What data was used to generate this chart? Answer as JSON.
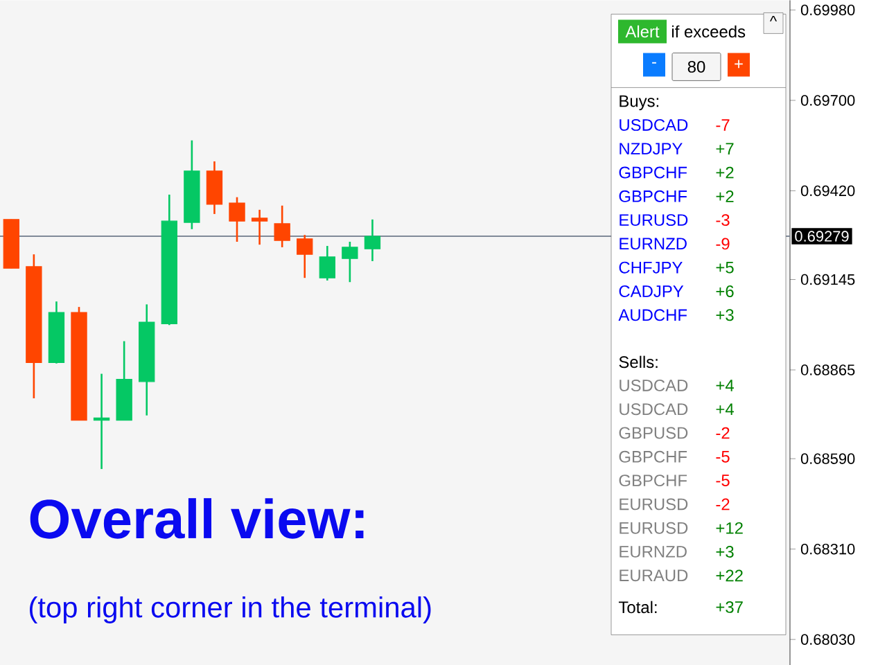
{
  "chart_data": {
    "type": "candlestick",
    "categories": [
      null,
      null,
      null,
      null,
      null,
      null,
      null,
      null,
      null,
      null,
      null,
      null,
      null,
      null,
      null,
      null,
      null,
      null,
      null,
      null,
      null,
      null,
      null,
      null,
      null,
      null,
      null,
      null,
      null,
      null,
      null,
      null,
      null,
      null,
      null
    ],
    "ohlc": [
      [
        0.69331,
        0.69331,
        0.6918,
        0.6918
      ],
      [
        0.69185,
        0.69223,
        0.68777,
        0.68888
      ],
      [
        0.68888,
        0.69077,
        0.68885,
        0.69043
      ],
      [
        0.69043,
        0.6906,
        0.68709,
        0.68709
      ],
      [
        0.68709,
        0.68853,
        0.68558,
        0.68716
      ],
      [
        0.68709,
        0.68954,
        0.68709,
        0.68836
      ],
      [
        0.68829,
        0.69068,
        0.68724,
        0.69013
      ],
      [
        0.69008,
        0.69408,
        0.69004,
        0.69326
      ],
      [
        0.69322,
        0.69576,
        0.69301,
        0.69481
      ],
      [
        0.69481,
        0.69511,
        0.69348,
        0.69378
      ],
      [
        0.69382,
        0.694,
        0.69262,
        0.69326
      ],
      [
        0.69335,
        0.69361,
        0.69253,
        0.69326
      ],
      [
        0.69318,
        0.69374,
        0.69245,
        0.69266
      ],
      [
        0.69271,
        0.69283,
        0.6915,
        0.69223
      ],
      [
        0.6915,
        0.69249,
        0.69142,
        0.69215
      ],
      [
        0.6921,
        0.69262,
        0.69137,
        0.69245
      ],
      [
        0.6924,
        0.69331,
        0.69202,
        0.69279
      ],
      null,
      null,
      null,
      null,
      null,
      null,
      null,
      null,
      null,
      null,
      null,
      null,
      null,
      null,
      null,
      null,
      null,
      null
    ],
    "colors": [
      "#ff4500",
      "#ff4500",
      "#05c864",
      "#ff4500",
      "#05c864",
      "#05c864",
      "#05c864",
      "#05c864",
      "#05c864",
      "#ff4500",
      "#ff4500",
      "#ff4500",
      "#ff4500",
      "#ff4500",
      "#05c864",
      "#05c864",
      "#05c864",
      null,
      null,
      null,
      null,
      null,
      null,
      null,
      null,
      null,
      null,
      null,
      null,
      null,
      null,
      null,
      null,
      null,
      null
    ],
    "ylim": [
      0.6795,
      0.7001
    ],
    "yticks": [
      {
        "value": 0.6998,
        "label": "0.69980"
      },
      {
        "value": 0.697,
        "label": "0.69700"
      },
      {
        "value": 0.6942,
        "label": "0.69420"
      },
      {
        "value": 0.69145,
        "label": "0.69145"
      },
      {
        "value": 0.68865,
        "label": "0.68865"
      },
      {
        "value": 0.6859,
        "label": "0.68590"
      },
      {
        "value": 0.6831,
        "label": "0.68310"
      },
      {
        "value": 0.6803,
        "label": "0.68030"
      }
    ],
    "tick_labels": "y",
    "ref_lines": [
      {
        "axis": "y",
        "value": 0.69279,
        "label": "0.69279",
        "color": "#7f8998"
      }
    ],
    "annotations": [
      "Overall view:",
      "(top right corner in the terminal)",
      "Alert",
      "if exceeds",
      "-",
      "80",
      "+",
      "^",
      "Buys:",
      "USDCAD",
      "-7",
      "NZDJPY",
      "+7",
      "GBPCHF",
      "+2",
      "GBPCHF",
      "+2",
      "EURUSD",
      "-3",
      "EURNZD",
      "-9",
      "CHFJPY",
      "+5",
      "CADJPY",
      "+6",
      "AUDCHF",
      "+3",
      "Sells:",
      "USDCAD",
      "+4",
      "USDCAD",
      "+4",
      "GBPUSD",
      "-2",
      "GBPCHF",
      "-5",
      "GBPCHF",
      "-5",
      "EURUSD",
      "-2",
      "EURUSD",
      "+12",
      "EURNZD",
      "+3",
      "EURAUD",
      "+22",
      "Total:",
      "+37"
    ]
  }
}
